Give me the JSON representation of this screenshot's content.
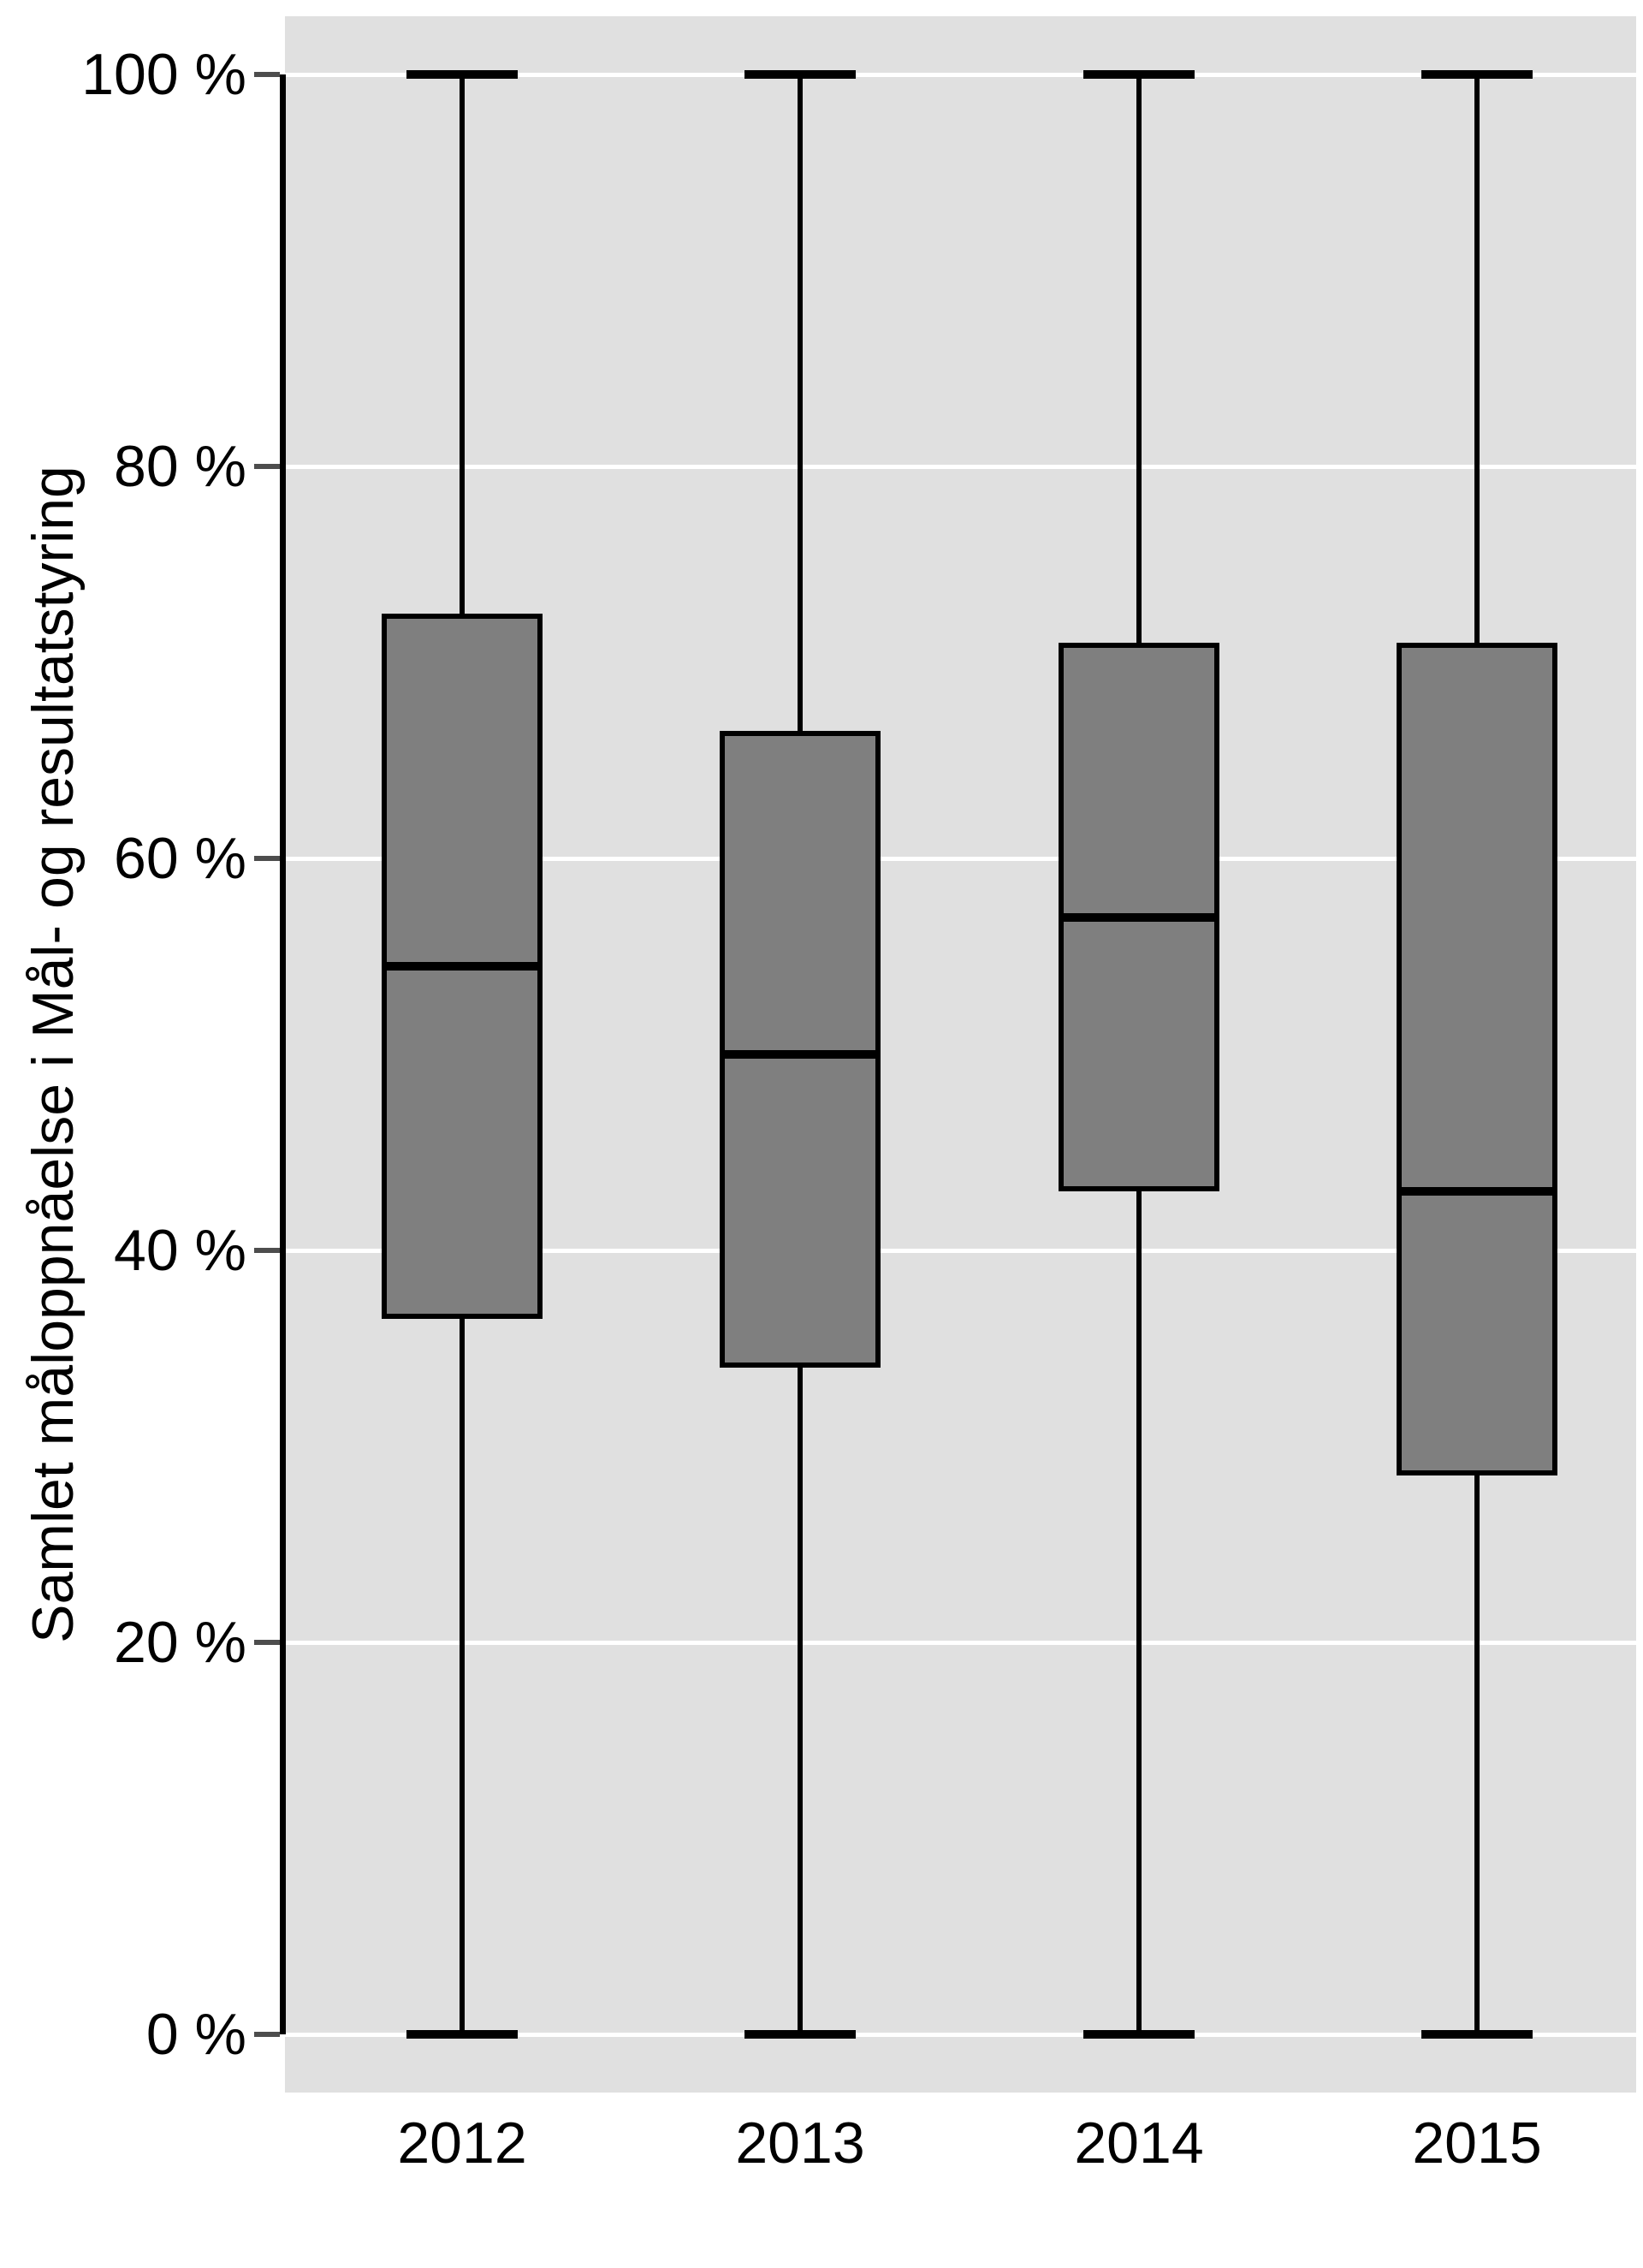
{
  "figure": {
    "background": "#ffffff",
    "panel_background": "#e0e0e0",
    "gridline_color": "#ffffff",
    "box_fill": "#7f7f7f",
    "box_border_color": "#000000",
    "whisker_color": "#000000",
    "tick_mark_color": "#4d4d4d",
    "axis_line_color": "#000000",
    "text_color": "#000000"
  },
  "y_axis": {
    "title": "Samlet måloppnåelse i Mål- og resultatstyring",
    "ticks": [
      {
        "value": 0,
        "label": "0 %"
      },
      {
        "value": 20,
        "label": "20 %"
      },
      {
        "value": 40,
        "label": "40 %"
      },
      {
        "value": 60,
        "label": "60 %"
      },
      {
        "value": 80,
        "label": "80 %"
      },
      {
        "value": 100,
        "label": "100 %"
      }
    ]
  },
  "x_axis": {
    "categories": [
      "2012",
      "2013",
      "2014",
      "2015"
    ]
  },
  "chart_data": {
    "type": "boxplot",
    "title": "",
    "xlabel": "",
    "ylabel": "Samlet måloppnåelse i Mål- og resultatstyring",
    "ylim": [
      0,
      100
    ],
    "unit": "%",
    "grid": "major-horizontal-only",
    "legend": "none",
    "categories": [
      "2012",
      "2013",
      "2014",
      "2015"
    ],
    "series": [
      {
        "label": "2012",
        "whisker_low": 0,
        "q1": 36.5,
        "median": 54.5,
        "q3": 72.5,
        "whisker_high": 100
      },
      {
        "label": "2013",
        "whisker_low": 0,
        "q1": 34,
        "median": 50,
        "q3": 66.5,
        "whisker_high": 100
      },
      {
        "label": "2014",
        "whisker_low": 0,
        "q1": 43,
        "median": 57,
        "q3": 71,
        "whisker_high": 100
      },
      {
        "label": "2015",
        "whisker_low": 0,
        "q1": 28.5,
        "median": 43,
        "q3": 71,
        "whisker_high": 100
      }
    ]
  }
}
